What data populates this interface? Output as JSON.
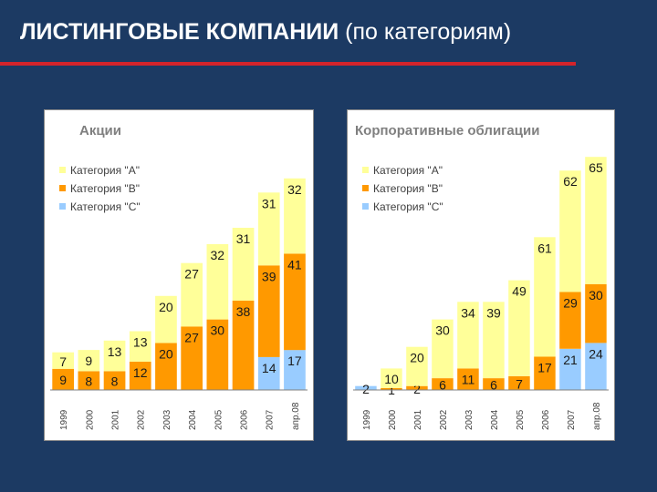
{
  "slide": {
    "title_bold": "ЛИСТИНГОВЫЕ КОМПАНИИ",
    "title_rest": " (по категориям)"
  },
  "colors": {
    "category_a": "#ffff99",
    "category_b": "#ff9900",
    "category_c": "#99ccff",
    "title_rule": "#d4242b",
    "background": "#1c3a63"
  },
  "chart_data": [
    {
      "type": "bar",
      "stacked": true,
      "title": "Акции",
      "legend": [
        "Категория \"A\"",
        "Категория \"B\"",
        "Категория \"C\""
      ],
      "legend_position": "top-left",
      "categories": [
        "1999",
        "2000",
        "2001",
        "2002",
        "2003",
        "2004",
        "2005",
        "2006",
        "2007",
        "апр.08"
      ],
      "ylim": [
        0,
        100
      ],
      "series": [
        {
          "name": "Категория \"C\"",
          "values": [
            0,
            0,
            0,
            0,
            0,
            0,
            0,
            0,
            14,
            17
          ]
        },
        {
          "name": "Категория \"B\"",
          "values": [
            9,
            8,
            8,
            12,
            20,
            27,
            30,
            38,
            39,
            41
          ]
        },
        {
          "name": "Категория \"A\"",
          "values": [
            7,
            9,
            13,
            13,
            20,
            27,
            32,
            31,
            31,
            32
          ]
        }
      ]
    },
    {
      "type": "bar",
      "stacked": true,
      "title": "Корпоративные облигации",
      "legend": [
        "Категория \"A\"",
        "Категория \"B\"",
        "Категория \"C\""
      ],
      "legend_position": "top-left",
      "categories": [
        "1999",
        "2000",
        "2001",
        "2002",
        "2003",
        "2004",
        "2005",
        "2006",
        "2007",
        "апр.08"
      ],
      "ylim": [
        0,
        120
      ],
      "series": [
        {
          "name": "Категория \"C\"",
          "values": [
            2,
            0,
            0,
            0,
            0,
            0,
            0,
            0,
            21,
            24
          ]
        },
        {
          "name": "Категория \"B\"",
          "values": [
            0,
            1,
            2,
            6,
            11,
            6,
            7,
            17,
            29,
            30
          ]
        },
        {
          "name": "Категория \"A\"",
          "values": [
            0,
            10,
            20,
            30,
            34,
            39,
            49,
            61,
            62,
            65
          ]
        }
      ]
    }
  ]
}
